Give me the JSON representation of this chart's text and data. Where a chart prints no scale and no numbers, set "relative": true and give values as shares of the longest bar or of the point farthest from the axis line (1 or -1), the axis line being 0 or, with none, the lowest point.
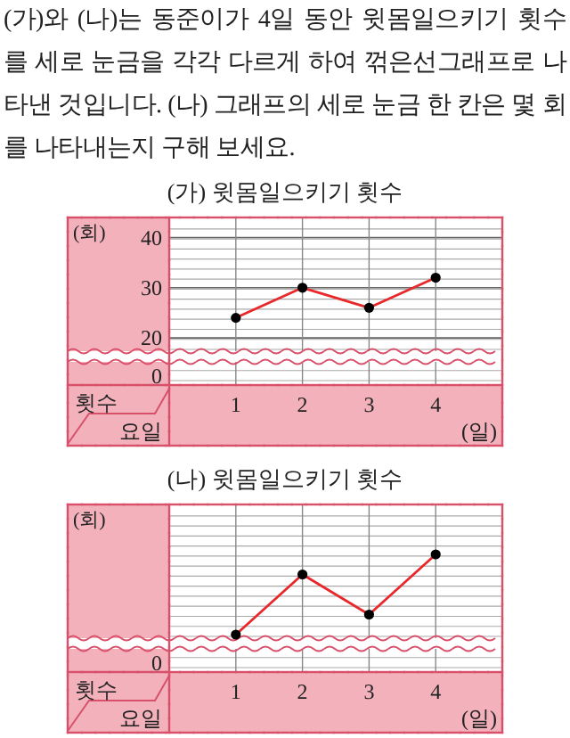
{
  "chart_data": [
    {
      "type": "line",
      "title": "(가) 윗몸일으키기 횟수",
      "ylabel": "(회)",
      "xlabel": "(일)",
      "annotations": [
        "(가)와 (나)는 동준이가 4일 동안 윗몸일으키기 횟수를 세로 눈금을 각각 다르게 하여 꺾은선그래프로 나타낸 것입니다. (나) 그래프의 세로 눈금 한 칸은 몇 회를 나타내는지 구해 보세요.",
        "횟수",
        "요일",
        "0"
      ],
      "x": [
        1,
        2,
        3,
        4
      ],
      "xlim": [
        0,
        5
      ],
      "xticks": [
        1,
        2,
        3,
        4
      ],
      "ylim": [
        17,
        44
      ],
      "yticks": [
        20,
        30,
        40
      ],
      "marker": "circle",
      "grid": true,
      "series": [
        {
          "color": "#e8282a",
          "values": [
            24,
            30,
            26,
            32
          ]
        }
      ]
    },
    {
      "type": "line",
      "title": "(나) 윗몸일으키기 횟수",
      "ylabel": "(회)",
      "xlabel": "(일)",
      "annotations": [
        "횟수",
        "요일",
        "0"
      ],
      "x": [
        1,
        2,
        3,
        4
      ],
      "xlim": [
        0,
        5
      ],
      "xticks": [
        1,
        2,
        3,
        4
      ],
      "relative": true,
      "marker": "circle",
      "grid": true,
      "series": [
        {
          "color": "#e8282a",
          "values": [
            0,
            0.75,
            0.25,
            1
          ]
        }
      ]
    }
  ]
}
